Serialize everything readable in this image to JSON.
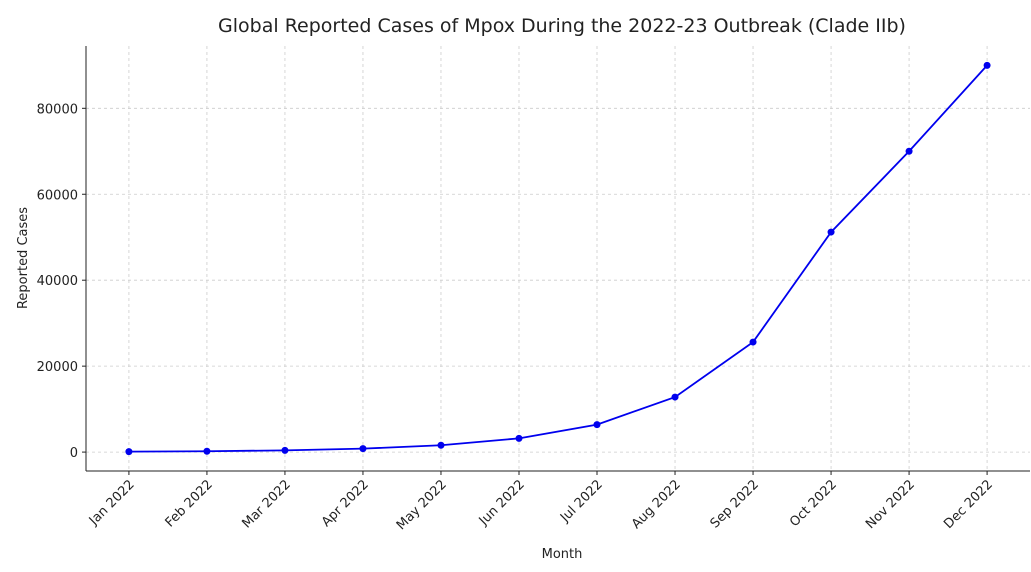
{
  "chart_data": {
    "type": "line",
    "title": "Global Reported Cases of Mpox During the 2022-23 Outbreak (Clade IIb)",
    "x_label": "Month",
    "y_label": "Reported Cases",
    "categories": [
      "Jan 2022",
      "Feb 2022",
      "Mar 2022",
      "Apr 2022",
      "May 2022",
      "Jun 2022",
      "Jul 2022",
      "Aug 2022",
      "Sep 2022",
      "Oct 2022",
      "Nov 2022",
      "Dec 2022"
    ],
    "series": [
      {
        "name": "Reported Cases",
        "color": "#0000ee",
        "values": [
          100,
          200,
          400,
          800,
          1600,
          3200,
          6400,
          12800,
          25600,
          51200,
          70000,
          90000
        ]
      }
    ],
    "ylim": [
      -4400,
      94500
    ],
    "yticks": [
      0,
      20000,
      40000,
      60000,
      80000
    ],
    "grid": true
  }
}
